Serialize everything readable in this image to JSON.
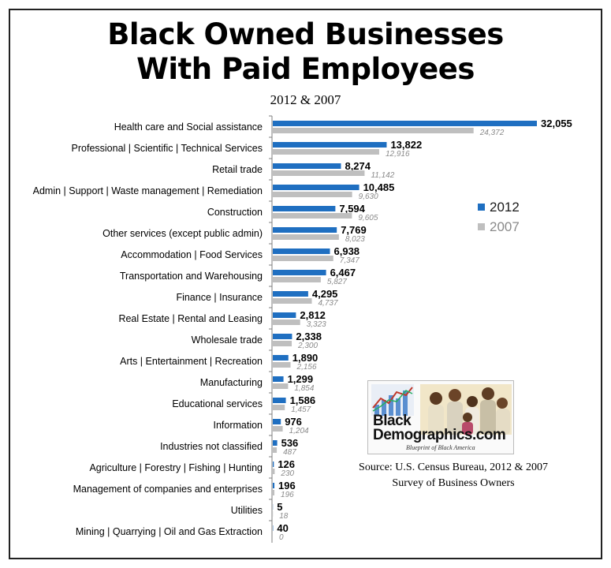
{
  "title_line1": "Black Owned Businesses",
  "title_line2": "With Paid Employees",
  "subtitle": "2012 & 2007",
  "legend": [
    {
      "label": "2012",
      "color": "#1f6fc1"
    },
    {
      "label": "2007",
      "color": "#bfbfbf"
    }
  ],
  "logo": {
    "line1": "Black",
    "line2": "Demographics.com",
    "tagline": "Blueprint of Black America"
  },
  "source": {
    "line1": "Source: U.S. Census Bureau, 2012 & 2007",
    "line2": "Survey of Business Owners"
  },
  "chart_data": {
    "type": "bar",
    "orientation": "horizontal",
    "title": "Black Owned Businesses With Paid Employees",
    "subtitle": "2012 & 2007",
    "xlim": [
      0,
      32055
    ],
    "grid": false,
    "legend_position": "right",
    "categories": [
      "Health care and Social assistance",
      "Professional | Scientific | Technical Services",
      "Retail trade",
      "Admin | Support | Waste management | Remediation",
      "Construction",
      "Other services (except public admin)",
      "Accommodation | Food Services",
      "Transportation and Warehousing",
      "Finance | Insurance",
      "Real Estate | Rental and Leasing",
      "Wholesale trade",
      "Arts | Entertainment | Recreation",
      "Manufacturing",
      "Educational services",
      "Information",
      "Industries not classified",
      "Agriculture | Forestry | Fishing | Hunting",
      "Management of companies and enterprises",
      "Utilities",
      "Mining | Quarrying | Oil and Gas Extraction"
    ],
    "series": [
      {
        "name": "2012",
        "color": "#1f6fc1",
        "values": [
          32055,
          13822,
          8274,
          10485,
          7594,
          7769,
          6938,
          6467,
          4295,
          2812,
          2338,
          1890,
          1299,
          1586,
          976,
          536,
          126,
          196,
          5,
          40
        ],
        "labels": [
          "32,055",
          "13,822",
          "8,274",
          "10,485",
          "7,594",
          "7,769",
          "6,938",
          "6,467",
          "4,295",
          "2,812",
          "2,338",
          "1,890",
          "1,299",
          "1,586",
          "976",
          "536",
          "126",
          "196",
          "5",
          "40"
        ]
      },
      {
        "name": "2007",
        "color": "#bfbfbf",
        "values": [
          24372,
          12916,
          11142,
          9630,
          9605,
          8023,
          7347,
          5827,
          4737,
          3323,
          2300,
          2156,
          1854,
          1457,
          1204,
          487,
          230,
          196,
          18,
          0
        ],
        "labels": [
          "24,372",
          "12,916",
          "11,142",
          "9,630",
          "9,605",
          "8,023",
          "7,347",
          "5,827",
          "4,737",
          "3,323",
          "2,300",
          "2,156",
          "1,854",
          "1,457",
          "1,204",
          "487",
          "230",
          "196",
          "18",
          "0"
        ]
      }
    ]
  }
}
